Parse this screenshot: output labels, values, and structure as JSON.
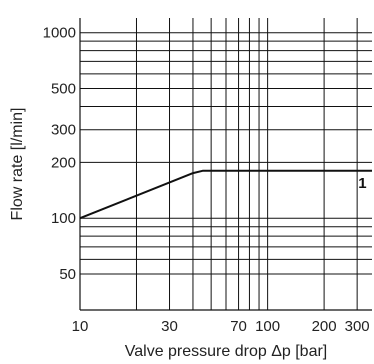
{
  "chart_data": {
    "type": "line",
    "xlabel": "Valve pressure drop Δp [bar]",
    "ylabel": "Flow rate [l/min]",
    "x_scale": "log",
    "y_scale": "log",
    "xlim": [
      10,
      360
    ],
    "ylim": [
      32,
      1200
    ],
    "grid": true,
    "x_ticks": [
      {
        "value": 10,
        "label": "10"
      },
      {
        "value": 30,
        "label": "30"
      },
      {
        "value": 70,
        "label": "70"
      },
      {
        "value": 100,
        "label": "100"
      },
      {
        "value": 200,
        "label": "200"
      },
      {
        "value": 300,
        "label": "300"
      }
    ],
    "y_ticks": [
      {
        "value": 50,
        "label": "50"
      },
      {
        "value": 100,
        "label": "100"
      },
      {
        "value": 200,
        "label": "200"
      },
      {
        "value": 300,
        "label": "300"
      },
      {
        "value": 500,
        "label": "500"
      },
      {
        "value": 1000,
        "label": "1000"
      }
    ],
    "x_gridlines": [
      20,
      30,
      40,
      50,
      60,
      70,
      80,
      90,
      100,
      200,
      300
    ],
    "y_gridlines": [
      50,
      60,
      70,
      80,
      90,
      100,
      200,
      300,
      400,
      500,
      600,
      700,
      800,
      900,
      1000
    ],
    "series": [
      {
        "name": "1",
        "color": "#111111",
        "points": [
          [
            10,
            100
          ],
          [
            40,
            175
          ],
          [
            45,
            180
          ],
          [
            360,
            180
          ]
        ]
      }
    ],
    "annotations": [
      {
        "text": "1",
        "x": 320,
        "y": 155
      }
    ]
  }
}
